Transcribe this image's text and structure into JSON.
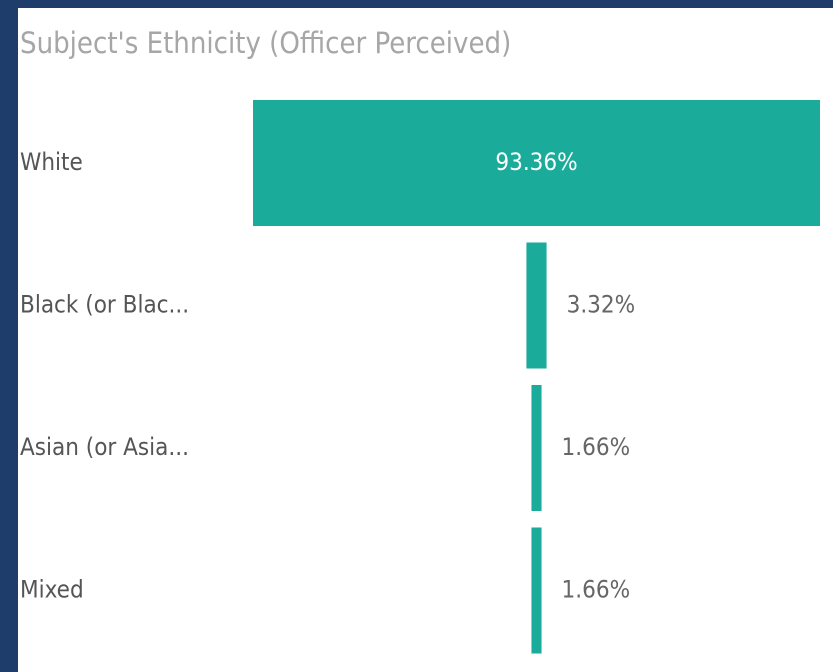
{
  "chart_data": {
    "type": "funnel",
    "title": "Subject's Ethnicity (Officer Perceived)",
    "categories": [
      "White",
      "Black (or Blac...",
      "Asian (or Asia...",
      "Mixed"
    ],
    "values": [
      93.36,
      3.32,
      1.66,
      1.66
    ],
    "value_labels": [
      "93.36%",
      "3.32%",
      "1.66%",
      "1.66%"
    ],
    "color": "#1aab9b"
  }
}
